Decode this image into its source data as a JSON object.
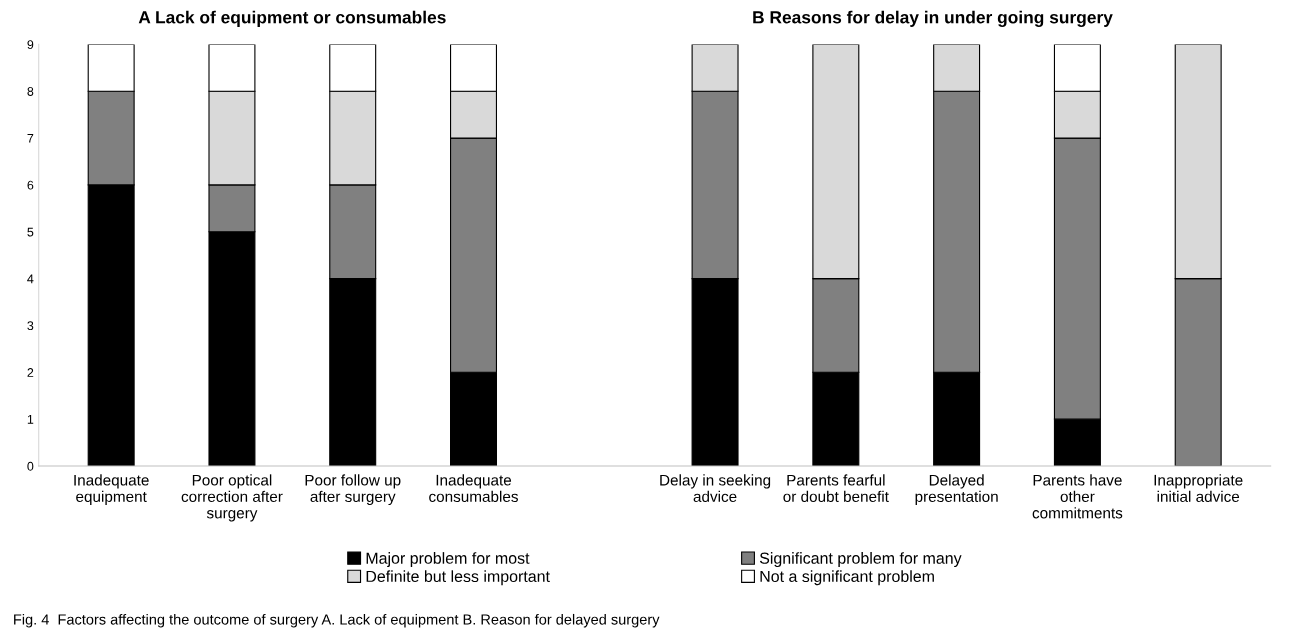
{
  "chart_data": {
    "type": "bar",
    "stacked": true,
    "categories": [
      "Inadequate\nequipment",
      "Poor optical\ncorrection after\nsurgery",
      "Poor follow up\nafter surgery",
      "Inadequate\nconsumables",
      null,
      "Delay in seeking\nadvice",
      "Parents fearful\nor doubt benefit",
      "Delayed\npresentation",
      "Parents have\nother\ncommitments",
      "Inappropriate\ninitial advice"
    ],
    "series": [
      {
        "name": "Major problem for most",
        "color": "#000000",
        "values": [
          6,
          5,
          4,
          2,
          null,
          4,
          2,
          2,
          1,
          0
        ]
      },
      {
        "name": "Significant problem for many",
        "color": "#808080",
        "values": [
          2,
          1,
          2,
          5,
          null,
          4,
          2,
          6,
          6,
          4
        ]
      },
      {
        "name": "Definite but less important",
        "color": "#d9d9d9",
        "values": [
          0,
          2,
          2,
          1,
          null,
          1,
          5,
          1,
          1,
          5
        ]
      },
      {
        "name": "Not a significant problem",
        "color": "#ffffff",
        "values": [
          1,
          1,
          1,
          1,
          null,
          0,
          0,
          0,
          1,
          0
        ]
      }
    ],
    "ylim": [
      0,
      9
    ],
    "yticks": [
      0,
      1,
      2,
      3,
      4,
      5,
      6,
      7,
      8,
      9
    ],
    "grid": false,
    "legend": "bottom",
    "annotations": [
      "A Lack of equipment or consumables",
      "B Reasons for delay in under going surgery",
      "Fig. 4  Factors affecting the outcome of surgery A. Lack of equipment B. Reason for delayed surgery"
    ]
  }
}
